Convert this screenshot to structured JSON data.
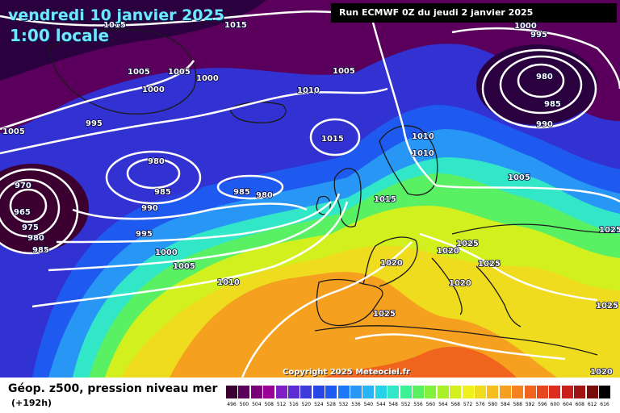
{
  "header": {
    "date_title": "vendredi 10 janvier 2025",
    "time_title": "1:00 locale",
    "run_info": "Run ECMWF 0Z du jeudi 2 janvier 2025"
  },
  "copyright": "Copyright 2025 Meteociel.fr",
  "footer": {
    "title": "Géop. z500, pression niveau mer",
    "subtitle": "(+192h)"
  },
  "legend": {
    "values": [
      "496",
      "500",
      "504",
      "508",
      "512",
      "516",
      "520",
      "524",
      "528",
      "532",
      "536",
      "540",
      "544",
      "548",
      "552",
      "556",
      "560",
      "564",
      "568",
      "572",
      "576",
      "580",
      "584",
      "588",
      "592",
      "596",
      "600",
      "604",
      "608",
      "612",
      "616"
    ],
    "colors": [
      "#3b0030",
      "#5a005a",
      "#7a007a",
      "#9a0096",
      "#7e1ec4",
      "#5a2cd2",
      "#3c3cdc",
      "#2846e6",
      "#1e5af0",
      "#1e78f5",
      "#2896f5",
      "#28b4f5",
      "#28d2e6",
      "#32e6c8",
      "#3cf096",
      "#5af064",
      "#82f03c",
      "#aaf028",
      "#d2f01e",
      "#f0f01e",
      "#f0dc1e",
      "#f5be1e",
      "#f5a01e",
      "#f5821e",
      "#f0641e",
      "#e6461e",
      "#dc2d1e",
      "#c81e1e",
      "#a01414",
      "#780a0a",
      "#000000"
    ]
  },
  "map": {
    "h500_band_colors": [
      "#2a003f",
      "#5a005c",
      "#3232d2",
      "#1e5af0",
      "#2896f5",
      "#32e6c8",
      "#5af064",
      "#d2f01e",
      "#f0dc1e",
      "#f5a01e",
      "#f0641e"
    ],
    "contour_color": "#ffffff",
    "coastline_color": "#1a1a1a"
  },
  "isobar_labels": [
    "1015",
    "1015",
    "1005",
    "1005",
    "1000",
    "1000",
    "995",
    "1005",
    "970",
    "965",
    "975",
    "980",
    "985",
    "980",
    "985",
    "990",
    "985",
    "980",
    "995",
    "1000",
    "1005",
    "1010",
    "1010",
    "1005",
    "1015",
    "1015",
    "1010",
    "1010",
    "1000",
    "995",
    "980",
    "985",
    "990",
    "1005",
    "1020",
    "1020",
    "1025",
    "1025",
    "1020",
    "1025",
    "1025",
    "1025",
    "1020"
  ]
}
